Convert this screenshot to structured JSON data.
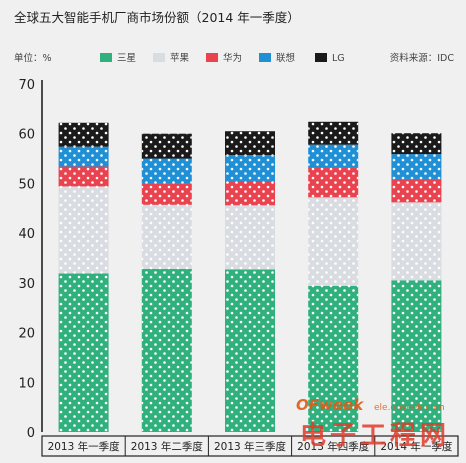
{
  "chart_data": {
    "type": "bar",
    "stacked": true,
    "title": "全球五大智能手机厂商市场份额（2014 年一季度）",
    "unit_label": "单位：%",
    "source": "资料来源：IDC",
    "categories": [
      "2013 年一季度",
      "2013 年二季度",
      "2013 年三季度",
      "2013 年四季度",
      "2014 年一季度"
    ],
    "ylim": [
      0,
      70
    ],
    "yticks": [
      0,
      10,
      20,
      30,
      40,
      50,
      60,
      70
    ],
    "legend_position": "top",
    "grid": false,
    "series": [
      {
        "name": "三星",
        "color": "#2fb07d",
        "values": [
          31.9,
          32.8,
          32.7,
          29.4,
          30.5
        ]
      },
      {
        "name": "苹果",
        "color": "#d9dde2",
        "values": [
          17.5,
          12.9,
          12.9,
          17.8,
          15.7
        ]
      },
      {
        "name": "华为",
        "color": "#e8434f",
        "values": [
          4.0,
          4.3,
          4.9,
          6.0,
          4.7
        ]
      },
      {
        "name": "联想",
        "color": "#1f8fd6",
        "values": [
          4.0,
          5.0,
          5.2,
          4.6,
          5.0
        ]
      },
      {
        "name": "LG",
        "color": "#1a1a1a",
        "values": [
          4.8,
          5.0,
          4.8,
          4.6,
          4.2
        ]
      }
    ]
  },
  "watermark": {
    "brand": "OFweek",
    "domain": "ele.ofweek.com",
    "name": "电子工程网"
  }
}
